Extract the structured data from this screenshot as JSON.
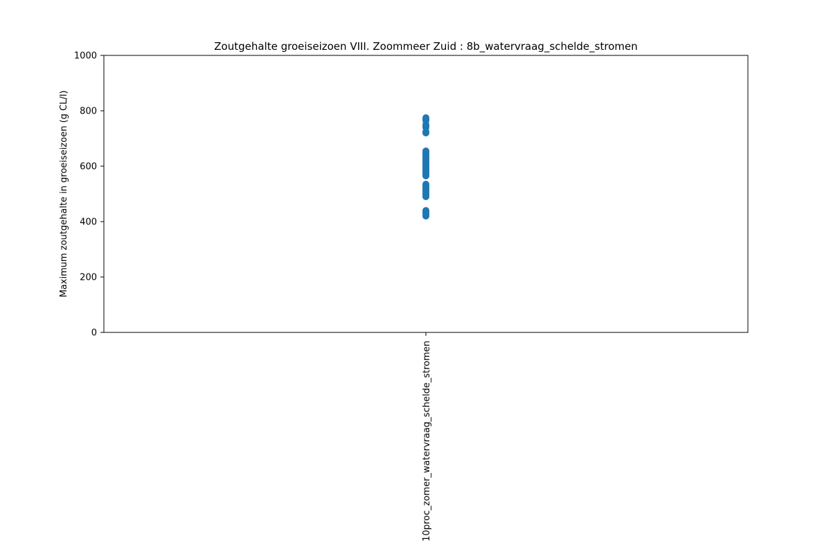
{
  "chart_data": {
    "type": "scatter",
    "title": "Zoutgehalte groeiseizoen VIII. Zoommeer Zuid : 8b_watervraag_schelde_stromen",
    "ylabel": "Maximum zoutgehalte in groeiseizoen (g CL/l)",
    "xlabel": "",
    "categories": [
      "10proc_zomer_watervraag_schelde_stromen"
    ],
    "ylim": [
      0,
      1000
    ],
    "yticks": [
      0,
      200,
      400,
      600,
      800,
      1000
    ],
    "grid": false,
    "legend": "none",
    "marker_color": "#1f77b4",
    "series": [
      {
        "category": "10proc_zomer_watervraag_schelde_stromen",
        "values": [
          420,
          425,
          430,
          435,
          440,
          490,
          495,
          500,
          505,
          510,
          515,
          520,
          525,
          530,
          535,
          565,
          570,
          575,
          580,
          585,
          590,
          595,
          600,
          605,
          610,
          615,
          620,
          625,
          630,
          635,
          640,
          645,
          650,
          655,
          720,
          725,
          740,
          745,
          750,
          765,
          770,
          775
        ]
      }
    ]
  }
}
